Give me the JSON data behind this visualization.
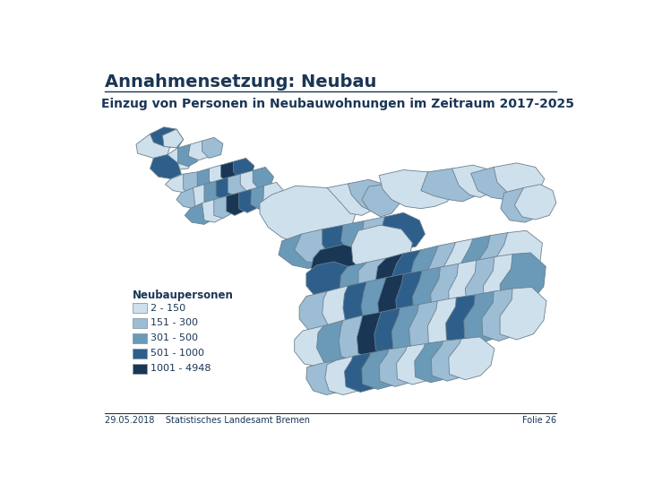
{
  "title": "Annahmensetzung: Neubau",
  "subtitle": "Einzug von Personen in Neubauwohnungen im Zeitraum 2017-2025",
  "footer_left": "29.05.2018    Statistisches Landesamt Bremen",
  "footer_right": "Folie 26",
  "legend_title": "Neubaupersonen",
  "legend_labels": [
    "2 - 150",
    "151 - 300",
    "301 - 500",
    "501 - 1000",
    "1001 - 4948"
  ],
  "legend_colors": [
    "#cfe0ed",
    "#9dbdd4",
    "#6a9ab8",
    "#2d5f8a",
    "#1a3655"
  ],
  "background_color": "#ffffff",
  "title_color": "#1a3655",
  "subtitle_color": "#1a3655",
  "footer_color": "#1a3655",
  "border_color": "#1a3655",
  "map_edge_color": "#6a7f8e",
  "c0": "#cfe0ed",
  "c1": "#9dbdd4",
  "c2": "#6a9ab8",
  "c3": "#2d5f8a",
  "c4": "#1a3655"
}
